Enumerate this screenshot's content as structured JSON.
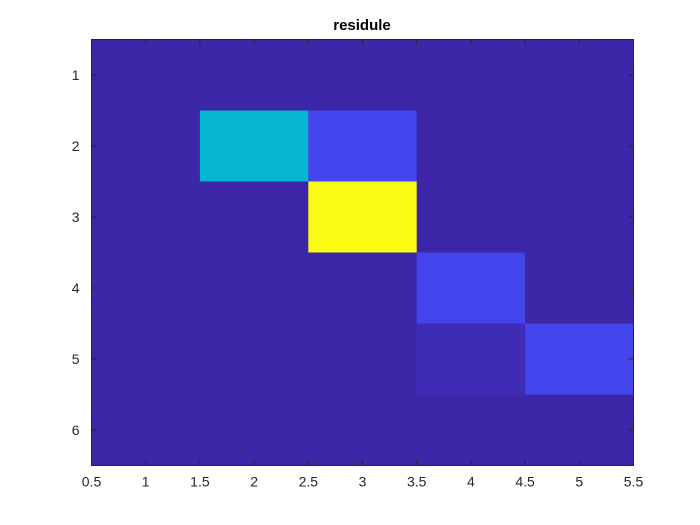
{
  "chart_data": {
    "type": "heatmap",
    "title": "residule",
    "xlabel": "",
    "ylabel": "",
    "xlim": [
      0.5,
      5.5
    ],
    "ylim": [
      0.5,
      6.5
    ],
    "y_reversed": true,
    "grid": false,
    "x_ticks": [
      "0.5",
      "1",
      "1.5",
      "2",
      "2.5",
      "3",
      "3.5",
      "4",
      "4.5",
      "5",
      "5.5"
    ],
    "y_ticks": [
      "1",
      "2",
      "3",
      "4",
      "5",
      "6"
    ],
    "colormap": "parula",
    "clim": [
      0,
      1
    ],
    "values": [
      [
        0.0,
        0.0,
        0.0,
        0.0,
        0.0
      ],
      [
        0.0,
        0.55,
        0.15,
        0.0,
        0.0
      ],
      [
        0.0,
        0.0,
        1.0,
        0.0,
        0.0
      ],
      [
        0.0,
        0.0,
        0.0,
        0.15,
        0.0
      ],
      [
        0.0,
        0.0,
        0.0,
        0.03,
        0.15
      ],
      [
        0.0,
        0.0,
        0.0,
        0.0,
        0.0
      ]
    ],
    "colors": {
      "low": "#3d26a8",
      "mid_blue": "#4344ec",
      "cyan": "#05b6d0",
      "yellow": "#f9fb15"
    }
  }
}
